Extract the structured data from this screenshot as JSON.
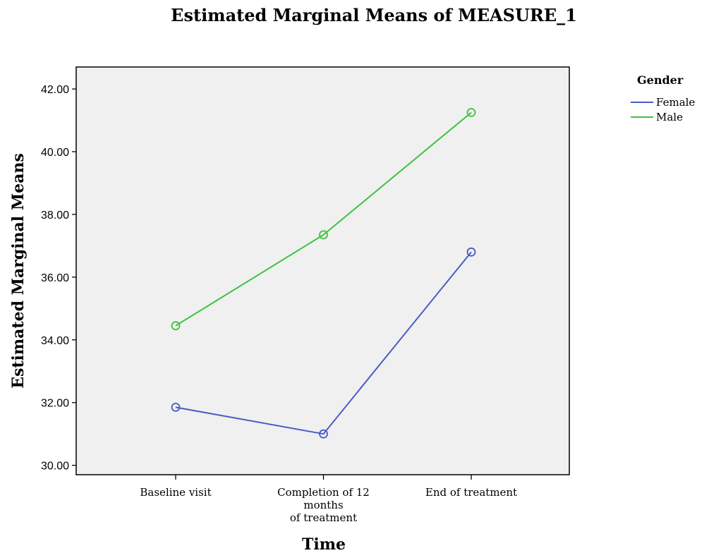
{
  "chart_data": {
    "type": "line",
    "title": "Estimated Marginal Means of MEASURE_1",
    "xlabel": "Time",
    "ylabel": "Estimated Marginal Means",
    "categories": [
      [
        "Baseline visit"
      ],
      [
        "Completion of 12",
        "months",
        "of treatment"
      ],
      [
        "End of treatment"
      ]
    ],
    "ylim": [
      29.7,
      42.7
    ],
    "yticks": [
      "30.00",
      "32.00",
      "34.00",
      "36.00",
      "38.00",
      "40.00",
      "42.00"
    ],
    "ytick_values": [
      30,
      32,
      34,
      36,
      38,
      40,
      42
    ],
    "legend_title": "Gender",
    "legend_position": "top-right outside",
    "grid": false,
    "plot_background": "#f0f0f0",
    "series": [
      {
        "name": "Female",
        "color": "#4a5cc4",
        "values": [
          31.85,
          31.0,
          36.8
        ]
      },
      {
        "name": "Male",
        "color": "#3ec23e",
        "values": [
          34.45,
          37.35,
          41.25
        ]
      }
    ]
  }
}
